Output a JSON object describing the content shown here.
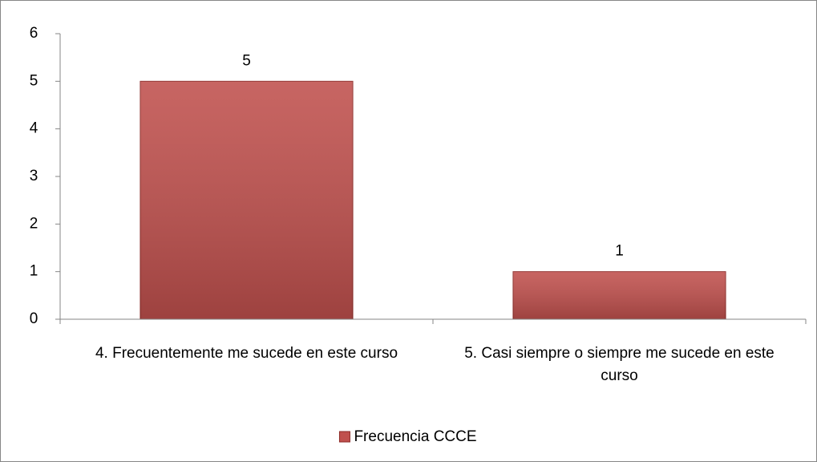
{
  "chart_data": {
    "type": "bar",
    "categories": [
      "4. Frecuentemente me sucede en este curso",
      "5. Casi siempre o siempre me sucede en este curso"
    ],
    "series": [
      {
        "name": "Frecuencia CCCE",
        "color": "#c0504d",
        "values": [
          5,
          1
        ]
      }
    ],
    "ylim": [
      0,
      6
    ],
    "yticks": [
      0,
      1,
      2,
      3,
      4,
      5,
      6
    ],
    "grid": false,
    "legend": "bottom",
    "data_labels": true
  }
}
